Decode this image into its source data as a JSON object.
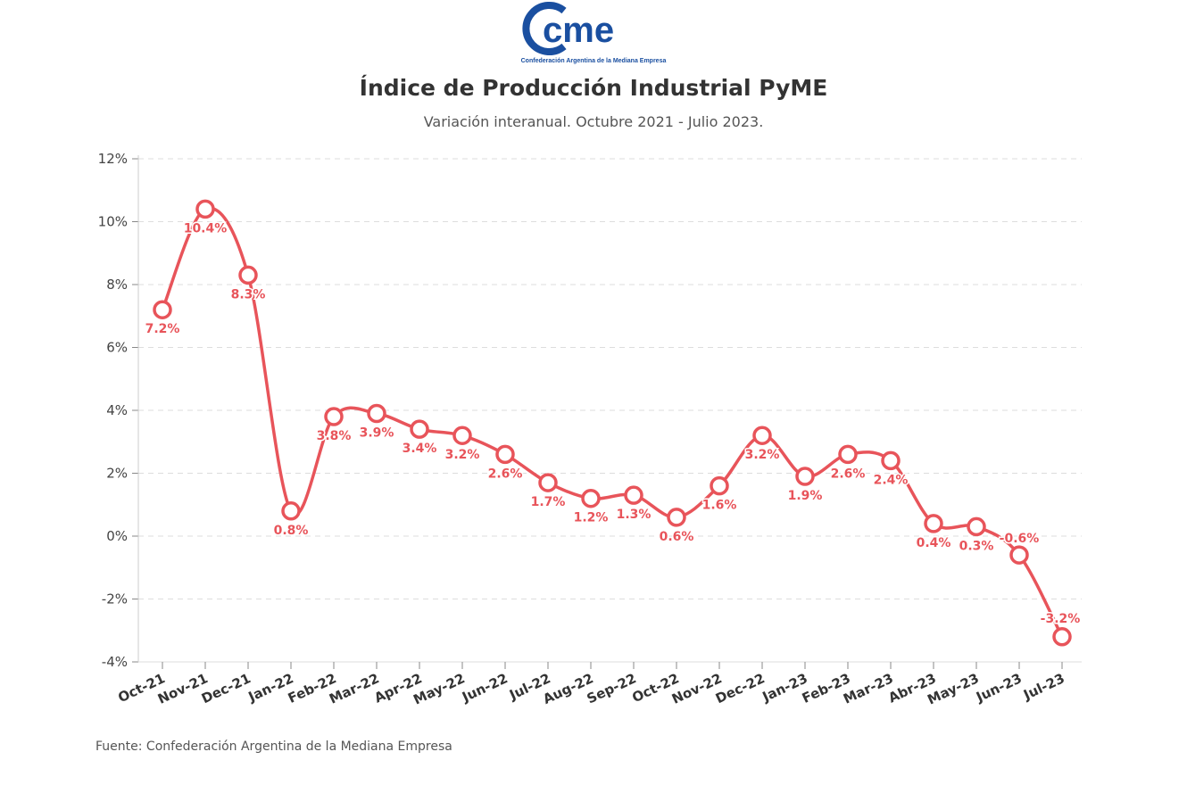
{
  "logo": {
    "text": "cme",
    "tagline": "Confederación Argentina de la Mediana Empresa",
    "brand_color": "#1a4fa0"
  },
  "title": "Índice de Producción Industrial PyME",
  "subtitle": "Variación interanual. Octubre 2021 - Julio 2023.",
  "source": "Fuente: Confederación Argentina de la Mediana Empresa",
  "chart_data": {
    "type": "line",
    "title": "Índice de Producción Industrial PyME",
    "subtitle": "Variación interanual. Octubre 2021 - Julio 2023.",
    "categories": [
      "Oct-21",
      "Nov-21",
      "Dec-21",
      "Jan-22",
      "Feb-22",
      "Mar-22",
      "Apr-22",
      "May-22",
      "Jun-22",
      "Jul-22",
      "Aug-22",
      "Sep-22",
      "Oct-22",
      "Nov-22",
      "Dec-22",
      "Jan-23",
      "Feb-23",
      "Mar-23",
      "Abr-23",
      "May-23",
      "Jun-23",
      "Jul-23"
    ],
    "series": [
      {
        "values": [
          7.2,
          10.4,
          8.3,
          0.8,
          3.8,
          3.9,
          3.4,
          3.2,
          2.6,
          1.7,
          1.2,
          1.3,
          0.6,
          1.6,
          3.2,
          1.9,
          2.6,
          2.4,
          0.4,
          0.3,
          -0.6,
          -3.2
        ],
        "labels": [
          "7.2%",
          "10.4%",
          "8.3%",
          "0.8%",
          "3.8%",
          "3.9%",
          "3.4%",
          "3.2%",
          "2.6%",
          "1.7%",
          "1.2%",
          "1.3%",
          "0.6%",
          "1.6%",
          "3.2%",
          "1.9%",
          "2.6%",
          "2.4%",
          "0.4%",
          "0.3%",
          "-0.6%",
          "-3.2%"
        ],
        "color": "#e8545a"
      }
    ],
    "yticks": [
      -4,
      -2,
      0,
      2,
      4,
      6,
      8,
      10,
      12
    ],
    "ytick_labels": [
      "-4%",
      "-2%",
      "0%",
      "2%",
      "4%",
      "6%",
      "8%",
      "10%",
      "12%"
    ],
    "ylim": [
      -4,
      12
    ],
    "grid": true,
    "legend": "none",
    "xlabel": "",
    "ylabel": ""
  }
}
